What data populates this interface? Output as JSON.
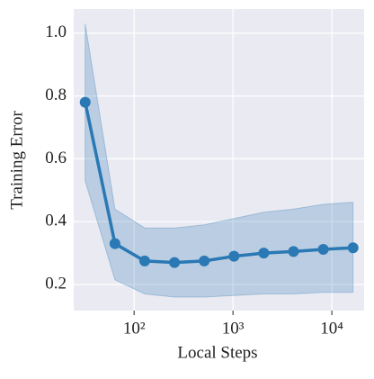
{
  "chart_data": {
    "type": "line",
    "xlabel": "Local Steps",
    "ylabel": "Training Error",
    "x": [
      32,
      64,
      128,
      256,
      512,
      1024,
      2048,
      4096,
      8192,
      16384
    ],
    "series": [
      {
        "color": "#2a78b4",
        "values": [
          0.78,
          0.33,
          0.275,
          0.27,
          0.275,
          0.29,
          0.3,
          0.305,
          0.312,
          0.317
        ],
        "upper": [
          1.03,
          0.44,
          0.38,
          0.38,
          0.39,
          0.41,
          0.43,
          0.44,
          0.455,
          0.462
        ],
        "lower": [
          0.53,
          0.215,
          0.17,
          0.16,
          0.16,
          0.165,
          0.17,
          0.17,
          0.175,
          0.175
        ]
      }
    ],
    "xscale": "log",
    "xlim": [
      24.5,
      21200
    ],
    "ylim": [
      0.117,
      1.077
    ],
    "xticks": [
      {
        "value": 100,
        "label": "10²"
      },
      {
        "value": 1000,
        "label": "10³"
      },
      {
        "value": 10000,
        "label": "10⁴"
      }
    ],
    "yticks": [
      0.2,
      0.4,
      0.6,
      0.8,
      {
        "value": 1,
        "label": "1.0"
      }
    ],
    "grid": true
  }
}
